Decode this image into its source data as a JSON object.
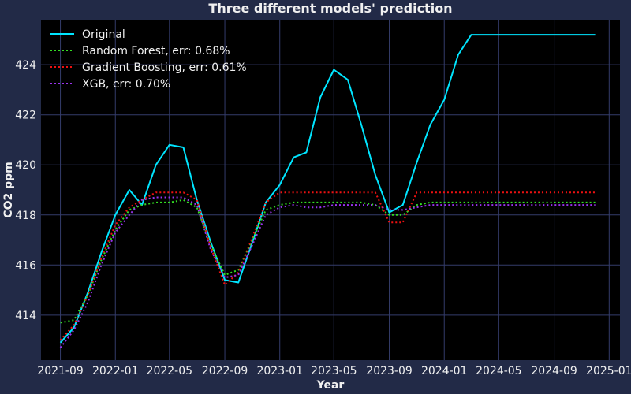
{
  "chart_data": {
    "type": "line",
    "title": "Three different models' prediction",
    "xlabel": "Year",
    "ylabel": "CO2 ppm",
    "x_axis": {
      "type": "date",
      "range": [
        "2021-07-20",
        "2025-01-25"
      ],
      "ticks": [
        "2021-09",
        "2022-01",
        "2022-05",
        "2022-09",
        "2023-01",
        "2023-05",
        "2023-09",
        "2024-01",
        "2024-05",
        "2024-09",
        "2025-01"
      ]
    },
    "y_axis": {
      "range": [
        412.2,
        425.8
      ],
      "ticks": [
        414,
        416,
        418,
        420,
        422,
        424
      ]
    },
    "grid": true,
    "legend_position": "top-left",
    "background": "#000000",
    "figure_background": "#222a47",
    "grid_color": "#343c6b",
    "series": [
      {
        "name": "Original",
        "color": "#00e5ff",
        "style": "solid",
        "points": [
          [
            "2021-09-01",
            412.9
          ],
          [
            "2021-10-01",
            413.5
          ],
          [
            "2021-11-01",
            414.9
          ],
          [
            "2021-12-01",
            416.5
          ],
          [
            "2022-01-01",
            418.0
          ],
          [
            "2022-02-01",
            419.0
          ],
          [
            "2022-03-01",
            418.4
          ],
          [
            "2022-04-01",
            420.0
          ],
          [
            "2022-05-01",
            420.8
          ],
          [
            "2022-06-01",
            420.7
          ],
          [
            "2022-07-01",
            418.6
          ],
          [
            "2022-08-01",
            416.9
          ],
          [
            "2022-09-01",
            415.4
          ],
          [
            "2022-10-01",
            415.3
          ],
          [
            "2022-11-01",
            416.9
          ],
          [
            "2022-12-01",
            418.5
          ],
          [
            "2023-01-01",
            419.2
          ],
          [
            "2023-02-01",
            420.3
          ],
          [
            "2023-03-01",
            420.5
          ],
          [
            "2023-04-01",
            422.7
          ],
          [
            "2023-05-01",
            423.8
          ],
          [
            "2023-06-01",
            423.4
          ],
          [
            "2023-07-01",
            421.6
          ],
          [
            "2023-08-01",
            419.6
          ],
          [
            "2023-09-01",
            418.1
          ],
          [
            "2023-10-01",
            418.4
          ],
          [
            "2023-11-01",
            420.1
          ],
          [
            "2023-12-01",
            421.6
          ],
          [
            "2024-01-01",
            422.6
          ],
          [
            "2024-02-01",
            424.4
          ],
          [
            "2024-03-01",
            425.2
          ],
          [
            "2024-04-01",
            425.2
          ],
          [
            "2024-05-01",
            425.2
          ],
          [
            "2024-06-01",
            425.2
          ],
          [
            "2024-07-01",
            425.2
          ],
          [
            "2024-08-01",
            425.2
          ],
          [
            "2024-09-01",
            425.2
          ],
          [
            "2024-10-01",
            425.2
          ],
          [
            "2024-11-01",
            425.2
          ],
          [
            "2024-12-01",
            425.2
          ]
        ]
      },
      {
        "name": "Random Forest, err: 0.68%",
        "color": "#33dd22",
        "style": "dotted",
        "points": [
          [
            "2021-09-01",
            413.7
          ],
          [
            "2021-10-01",
            413.8
          ],
          [
            "2021-11-01",
            414.8
          ],
          [
            "2021-12-01",
            416.2
          ],
          [
            "2022-01-01",
            417.4
          ],
          [
            "2022-02-01",
            418.2
          ],
          [
            "2022-03-01",
            418.4
          ],
          [
            "2022-04-01",
            418.5
          ],
          [
            "2022-05-01",
            418.5
          ],
          [
            "2022-06-01",
            418.6
          ],
          [
            "2022-07-01",
            418.3
          ],
          [
            "2022-08-01",
            416.8
          ],
          [
            "2022-09-01",
            415.6
          ],
          [
            "2022-10-01",
            415.8
          ],
          [
            "2022-11-01",
            417.0
          ],
          [
            "2022-12-01",
            418.2
          ],
          [
            "2023-01-01",
            418.4
          ],
          [
            "2023-02-01",
            418.5
          ],
          [
            "2023-03-01",
            418.5
          ],
          [
            "2023-04-01",
            418.5
          ],
          [
            "2023-05-01",
            418.5
          ],
          [
            "2023-06-01",
            418.5
          ],
          [
            "2023-07-01",
            418.5
          ],
          [
            "2023-08-01",
            418.4
          ],
          [
            "2023-09-01",
            418.0
          ],
          [
            "2023-10-01",
            418.0
          ],
          [
            "2023-11-01",
            418.4
          ],
          [
            "2023-12-01",
            418.5
          ],
          [
            "2024-01-01",
            418.5
          ],
          [
            "2024-02-01",
            418.5
          ],
          [
            "2024-03-01",
            418.5
          ],
          [
            "2024-04-01",
            418.5
          ],
          [
            "2024-05-01",
            418.5
          ],
          [
            "2024-06-01",
            418.5
          ],
          [
            "2024-07-01",
            418.5
          ],
          [
            "2024-08-01",
            418.5
          ],
          [
            "2024-09-01",
            418.5
          ],
          [
            "2024-10-01",
            418.5
          ],
          [
            "2024-11-01",
            418.5
          ],
          [
            "2024-12-01",
            418.5
          ]
        ]
      },
      {
        "name": "Gradient Boosting, err: 0.61%",
        "color": "#ee1111",
        "style": "dotted",
        "points": [
          [
            "2021-09-01",
            413.0
          ],
          [
            "2021-10-01",
            413.6
          ],
          [
            "2021-11-01",
            414.8
          ],
          [
            "2021-12-01",
            416.3
          ],
          [
            "2022-01-01",
            417.6
          ],
          [
            "2022-02-01",
            418.3
          ],
          [
            "2022-03-01",
            418.6
          ],
          [
            "2022-04-01",
            418.9
          ],
          [
            "2022-05-01",
            418.9
          ],
          [
            "2022-06-01",
            418.9
          ],
          [
            "2022-07-01",
            418.6
          ],
          [
            "2022-08-01",
            416.7
          ],
          [
            "2022-09-01",
            415.2
          ],
          [
            "2022-10-01",
            415.7
          ],
          [
            "2022-11-01",
            417.1
          ],
          [
            "2022-12-01",
            418.5
          ],
          [
            "2023-01-01",
            418.9
          ],
          [
            "2023-02-01",
            418.9
          ],
          [
            "2023-03-01",
            418.9
          ],
          [
            "2023-04-01",
            418.9
          ],
          [
            "2023-05-01",
            418.9
          ],
          [
            "2023-06-01",
            418.9
          ],
          [
            "2023-07-01",
            418.9
          ],
          [
            "2023-08-01",
            418.9
          ],
          [
            "2023-09-01",
            417.7
          ],
          [
            "2023-10-01",
            417.7
          ],
          [
            "2023-11-01",
            418.9
          ],
          [
            "2023-12-01",
            418.9
          ],
          [
            "2024-01-01",
            418.9
          ],
          [
            "2024-02-01",
            418.9
          ],
          [
            "2024-03-01",
            418.9
          ],
          [
            "2024-04-01",
            418.9
          ],
          [
            "2024-05-01",
            418.9
          ],
          [
            "2024-06-01",
            418.9
          ],
          [
            "2024-07-01",
            418.9
          ],
          [
            "2024-08-01",
            418.9
          ],
          [
            "2024-09-01",
            418.9
          ],
          [
            "2024-10-01",
            418.9
          ],
          [
            "2024-11-01",
            418.9
          ],
          [
            "2024-12-01",
            418.9
          ]
        ]
      },
      {
        "name": "XGB, err: 0.70%",
        "color": "#9933ee",
        "style": "dotted",
        "points": [
          [
            "2021-09-01",
            412.7
          ],
          [
            "2021-10-01",
            413.4
          ],
          [
            "2021-11-01",
            414.5
          ],
          [
            "2021-12-01",
            416.0
          ],
          [
            "2022-01-01",
            417.3
          ],
          [
            "2022-02-01",
            418.0
          ],
          [
            "2022-03-01",
            418.6
          ],
          [
            "2022-04-01",
            418.7
          ],
          [
            "2022-05-01",
            418.7
          ],
          [
            "2022-06-01",
            418.7
          ],
          [
            "2022-07-01",
            418.4
          ],
          [
            "2022-08-01",
            416.6
          ],
          [
            "2022-09-01",
            415.5
          ],
          [
            "2022-10-01",
            415.6
          ],
          [
            "2022-11-01",
            416.8
          ],
          [
            "2022-12-01",
            418.0
          ],
          [
            "2023-01-01",
            418.3
          ],
          [
            "2023-02-01",
            418.4
          ],
          [
            "2023-03-01",
            418.3
          ],
          [
            "2023-04-01",
            418.3
          ],
          [
            "2023-05-01",
            418.4
          ],
          [
            "2023-06-01",
            418.4
          ],
          [
            "2023-07-01",
            418.4
          ],
          [
            "2023-08-01",
            418.4
          ],
          [
            "2023-09-01",
            418.2
          ],
          [
            "2023-10-01",
            418.2
          ],
          [
            "2023-11-01",
            418.3
          ],
          [
            "2023-12-01",
            418.4
          ],
          [
            "2024-01-01",
            418.4
          ],
          [
            "2024-02-01",
            418.4
          ],
          [
            "2024-03-01",
            418.4
          ],
          [
            "2024-04-01",
            418.4
          ],
          [
            "2024-05-01",
            418.4
          ],
          [
            "2024-06-01",
            418.4
          ],
          [
            "2024-07-01",
            418.4
          ],
          [
            "2024-08-01",
            418.4
          ],
          [
            "2024-09-01",
            418.4
          ],
          [
            "2024-10-01",
            418.4
          ],
          [
            "2024-11-01",
            418.4
          ],
          [
            "2024-12-01",
            418.4
          ]
        ]
      }
    ]
  }
}
